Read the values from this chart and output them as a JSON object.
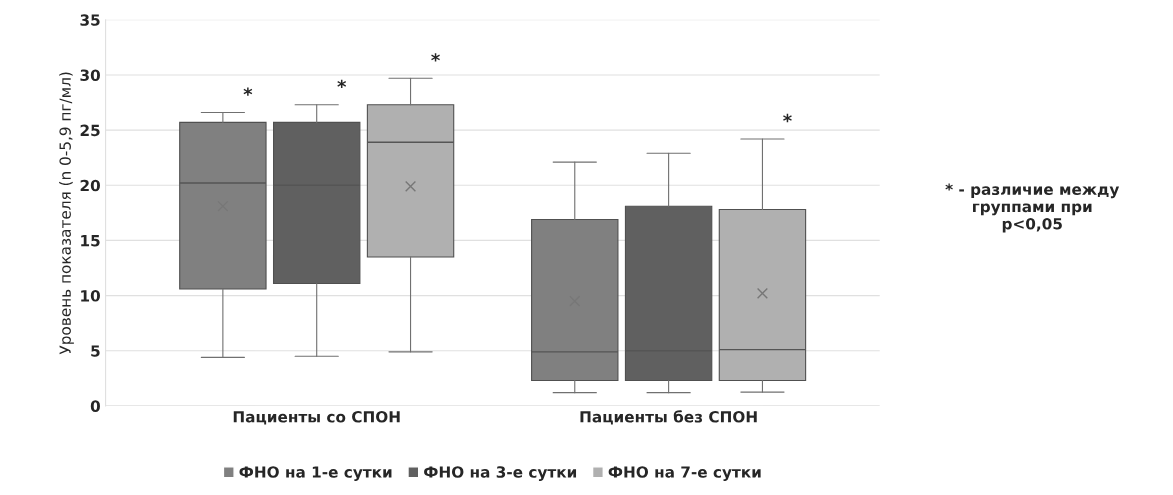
{
  "chart_data": {
    "type": "box",
    "ylabel": "Уровень показателя (n 0-5,9 пг/мл)",
    "categories": [
      "Пациенты со СПОН",
      "Пациенты без СПОН"
    ],
    "series": [
      {
        "name": "ФНО на 1-е сутки",
        "color": "#808080",
        "boxes": [
          {
            "low": 4.4,
            "q1": 10.6,
            "median": 20.2,
            "q3": 25.7,
            "high": 26.6,
            "mean": 18.1
          },
          {
            "low": 1.2,
            "q1": 2.3,
            "median": 4.9,
            "q3": 16.9,
            "high": 22.1,
            "mean": 9.5
          }
        ]
      },
      {
        "name": "ФНО на 3-е сутки",
        "color": "#606060",
        "boxes": [
          {
            "low": 4.5,
            "q1": 11.1,
            "median": 20.0,
            "q3": 25.7,
            "high": 27.3
          },
          {
            "low": 1.2,
            "q1": 2.3,
            "median": 5.0,
            "q3": 18.1,
            "high": 22.9
          }
        ]
      },
      {
        "name": "ФНО на 7-е сутки",
        "color": "#b0b0b0",
        "boxes": [
          {
            "low": 4.9,
            "q1": 13.5,
            "median": 23.9,
            "q3": 27.3,
            "high": 29.7,
            "mean": 19.9
          },
          {
            "low": 1.25,
            "q1": 2.3,
            "median": 5.1,
            "q3": 17.8,
            "high": 24.2,
            "mean": 10.2
          }
        ]
      }
    ],
    "ylim": [
      0,
      35
    ],
    "yticks": [
      0,
      5,
      10,
      15,
      20,
      25,
      30,
      35
    ],
    "grid": "y",
    "legend": "bottom",
    "annotations": [
      "*",
      "*",
      "*",
      "*",
      "* - различие между\nгруппами при\np<0,05"
    ]
  }
}
